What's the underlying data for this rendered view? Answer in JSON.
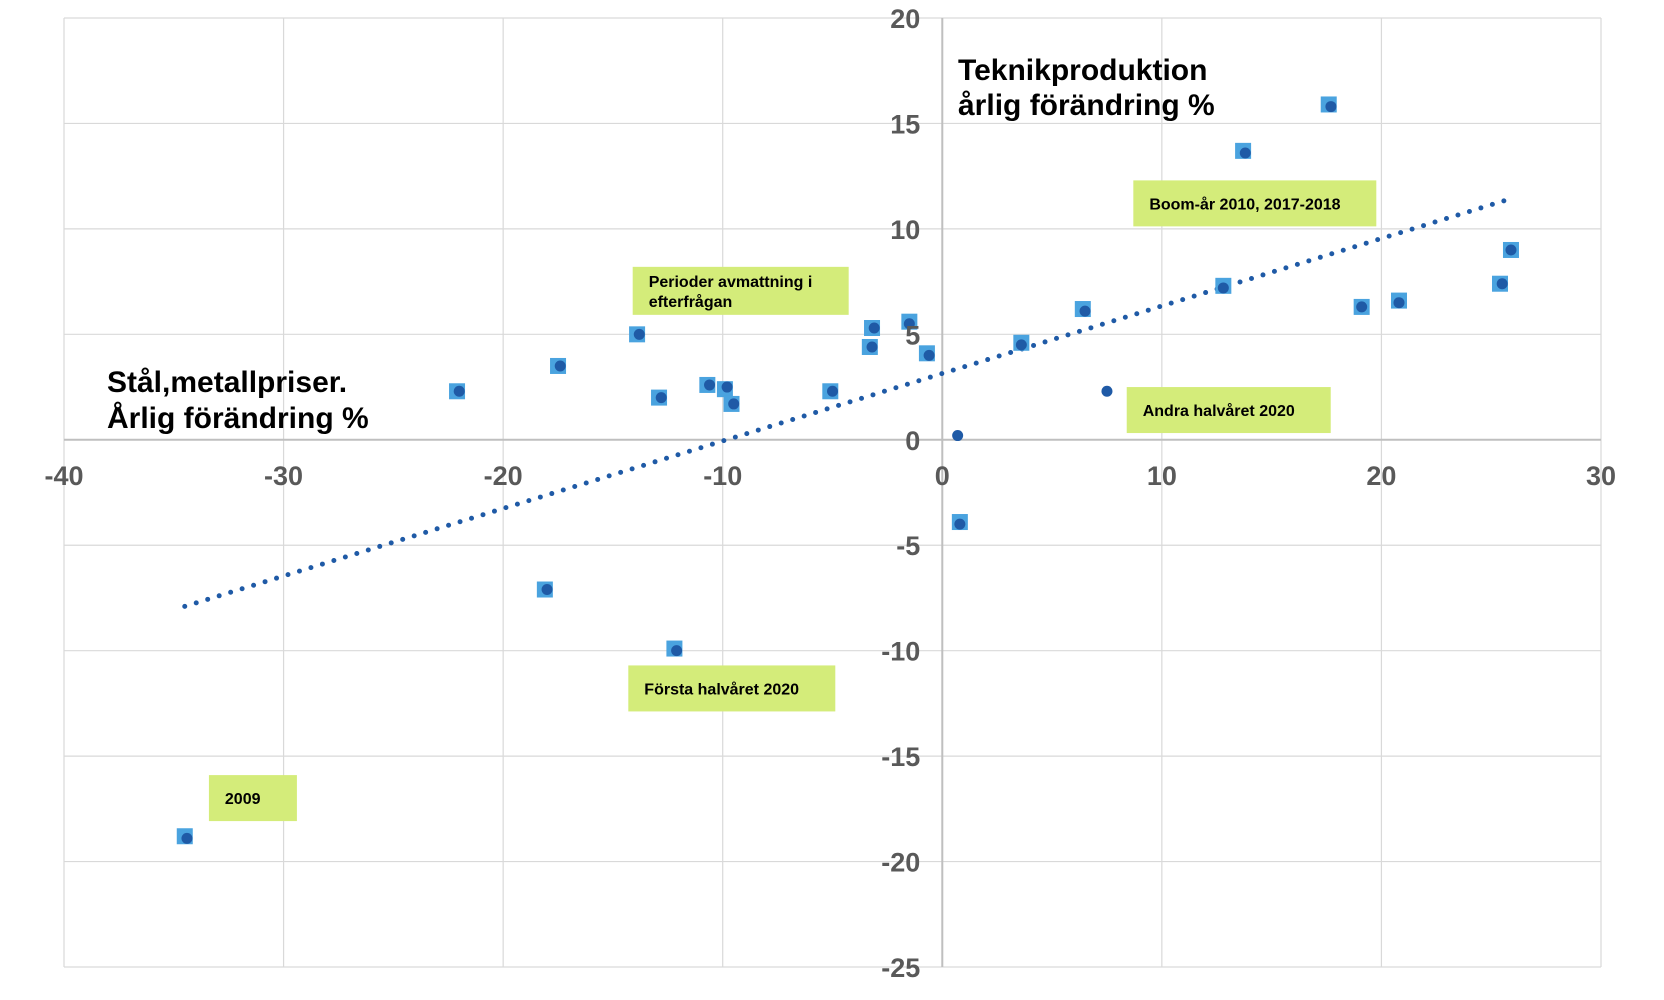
{
  "chart_data": {
    "type": "scatter",
    "xlim": [
      -40,
      30
    ],
    "ylim": [
      -25,
      20
    ],
    "x_ticks": [
      -40,
      -30,
      -20,
      -10,
      0,
      10,
      20,
      30
    ],
    "y_ticks": [
      -25,
      -20,
      -15,
      -10,
      -5,
      0,
      5,
      10,
      15,
      20
    ],
    "xlabel": [
      "Stål,metallpriser.",
      "Årlig förändring %"
    ],
    "ylabel": [
      "Teknikproduktion",
      "årlig förändring %"
    ],
    "grid": true,
    "legend": "none",
    "colors": {
      "square_marker": "#4aa3df",
      "dot_marker": "#1f5aa6",
      "trendline": "#1f5aa6",
      "label_box": "#d4ec7a",
      "grid": "#d9d9d9",
      "axis": "#bfbfbf"
    },
    "series": [
      {
        "marker": "square",
        "points": [
          [
            -34.5,
            -18.8
          ],
          [
            -18.1,
            -7.1
          ],
          [
            -12.2,
            -9.9
          ],
          [
            -22.1,
            2.3
          ],
          [
            -17.5,
            3.5
          ],
          [
            -13.9,
            5.0
          ],
          [
            -12.9,
            2.0
          ],
          [
            -10.7,
            2.6
          ],
          [
            -9.9,
            2.4
          ],
          [
            -9.6,
            1.7
          ],
          [
            -5.1,
            2.3
          ],
          [
            -3.3,
            4.4
          ],
          [
            -3.2,
            5.3
          ],
          [
            -1.5,
            5.6
          ],
          [
            -0.7,
            4.1
          ],
          [
            0.8,
            -3.9
          ],
          [
            3.6,
            4.6
          ],
          [
            6.4,
            6.2
          ],
          [
            12.8,
            7.3
          ],
          [
            13.7,
            13.7
          ],
          [
            17.6,
            15.9
          ],
          [
            19.1,
            6.3
          ],
          [
            20.8,
            6.6
          ],
          [
            25.4,
            7.4
          ],
          [
            25.9,
            9.0
          ]
        ]
      },
      {
        "marker": "dot",
        "points": [
          [
            -34.4,
            -18.9
          ],
          [
            -18.0,
            -7.1
          ],
          [
            -12.1,
            -10.0
          ],
          [
            -22.0,
            2.3
          ],
          [
            -17.4,
            3.5
          ],
          [
            -13.8,
            5.0
          ],
          [
            -12.8,
            2.0
          ],
          [
            -10.6,
            2.6
          ],
          [
            -9.8,
            2.5
          ],
          [
            -9.5,
            1.7
          ],
          [
            -5.0,
            2.3
          ],
          [
            -3.2,
            4.4
          ],
          [
            -3.1,
            5.3
          ],
          [
            -1.5,
            5.5
          ],
          [
            -0.6,
            4.0
          ],
          [
            0.7,
            0.2
          ],
          [
            0.8,
            -4.0
          ],
          [
            3.6,
            4.5
          ],
          [
            6.5,
            6.1
          ],
          [
            7.5,
            2.3
          ],
          [
            12.8,
            7.2
          ],
          [
            13.8,
            13.6
          ],
          [
            17.7,
            15.8
          ],
          [
            19.1,
            6.3
          ],
          [
            20.8,
            6.5
          ],
          [
            25.5,
            7.4
          ],
          [
            25.9,
            9.0
          ]
        ]
      }
    ],
    "trendline": {
      "style": "dotted",
      "x": [
        -34.5,
        25.8
      ],
      "y": [
        -7.9,
        11.4
      ]
    },
    "annotations": [
      {
        "lines": [
          "Boom-år 2010, 2017-2018"
        ],
        "x": 8.7,
        "y": 12.3
      },
      {
        "lines": [
          "Perioder avmattning i",
          "efterfrågan"
        ],
        "x": -14.1,
        "y": 8.2
      },
      {
        "lines": [
          "Andra halvåret 2020"
        ],
        "x": 8.4,
        "y": 2.5
      },
      {
        "lines": [
          "Första halvåret 2020"
        ],
        "x": -14.3,
        "y": -10.7
      },
      {
        "lines": [
          "2009"
        ],
        "x": -33.4,
        "y": -15.9
      }
    ]
  }
}
